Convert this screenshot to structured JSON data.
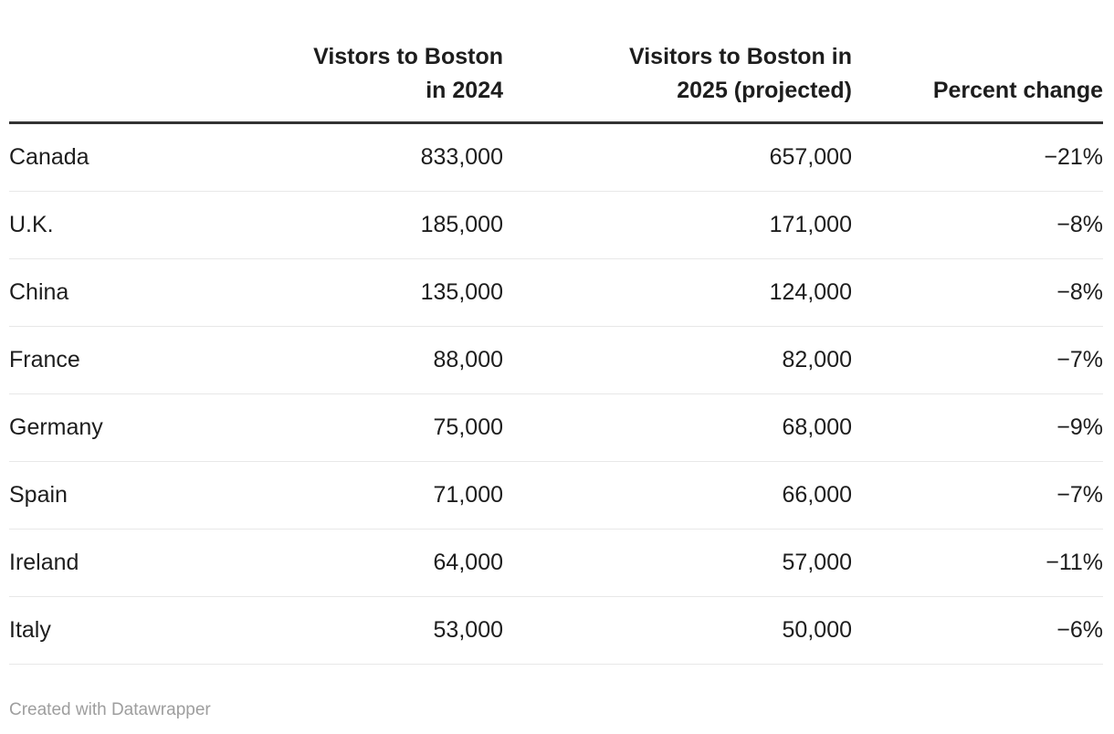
{
  "colors": {
    "text": "#1d1d1d",
    "header_rule": "#333333",
    "row_separator": "#e8e8e8",
    "footer_text": "#9e9e9e",
    "background": "#ffffff"
  },
  "table": {
    "columns": {
      "country": "",
      "visitors_2024": "Vistors to Boston\nin 2024",
      "visitors_2025": "Visitors to Boston in\n2025 (projected)",
      "percent_change": "Percent change"
    },
    "rows": [
      {
        "country": "Canada",
        "visitors_2024": "833,000",
        "visitors_2025": "657,000",
        "percent_change": "−21%"
      },
      {
        "country": "U.K.",
        "visitors_2024": "185,000",
        "visitors_2025": "171,000",
        "percent_change": "−8%"
      },
      {
        "country": "China",
        "visitors_2024": "135,000",
        "visitors_2025": "124,000",
        "percent_change": "−8%"
      },
      {
        "country": "France",
        "visitors_2024": "88,000",
        "visitors_2025": "82,000",
        "percent_change": "−7%"
      },
      {
        "country": "Germany",
        "visitors_2024": "75,000",
        "visitors_2025": "68,000",
        "percent_change": "−9%"
      },
      {
        "country": "Spain",
        "visitors_2024": "71,000",
        "visitors_2025": "66,000",
        "percent_change": "−7%"
      },
      {
        "country": "Ireland",
        "visitors_2024": "64,000",
        "visitors_2025": "57,000",
        "percent_change": "−11%"
      },
      {
        "country": "Italy",
        "visitors_2024": "53,000",
        "visitors_2025": "50,000",
        "percent_change": "−6%"
      }
    ]
  },
  "footer": {
    "attribution": "Created with Datawrapper"
  },
  "chart_data": {
    "type": "table",
    "title": "",
    "columns": [
      "",
      "Vistors to Boston in 2024",
      "Visitors to Boston in 2025 (projected)",
      "Percent change"
    ],
    "rows": [
      [
        "Canada",
        833000,
        657000,
        -21
      ],
      [
        "U.K.",
        185000,
        171000,
        -8
      ],
      [
        "China",
        135000,
        124000,
        -8
      ],
      [
        "France",
        88000,
        82000,
        -7
      ],
      [
        "Germany",
        75000,
        68000,
        -9
      ],
      [
        "Spain",
        71000,
        66000,
        -7
      ],
      [
        "Ireland",
        64000,
        57000,
        -11
      ],
      [
        "Italy",
        53000,
        50000,
        -6
      ]
    ],
    "notes": "Percent change values shown with Unicode minus sign; counts formatted with thousands separators"
  }
}
